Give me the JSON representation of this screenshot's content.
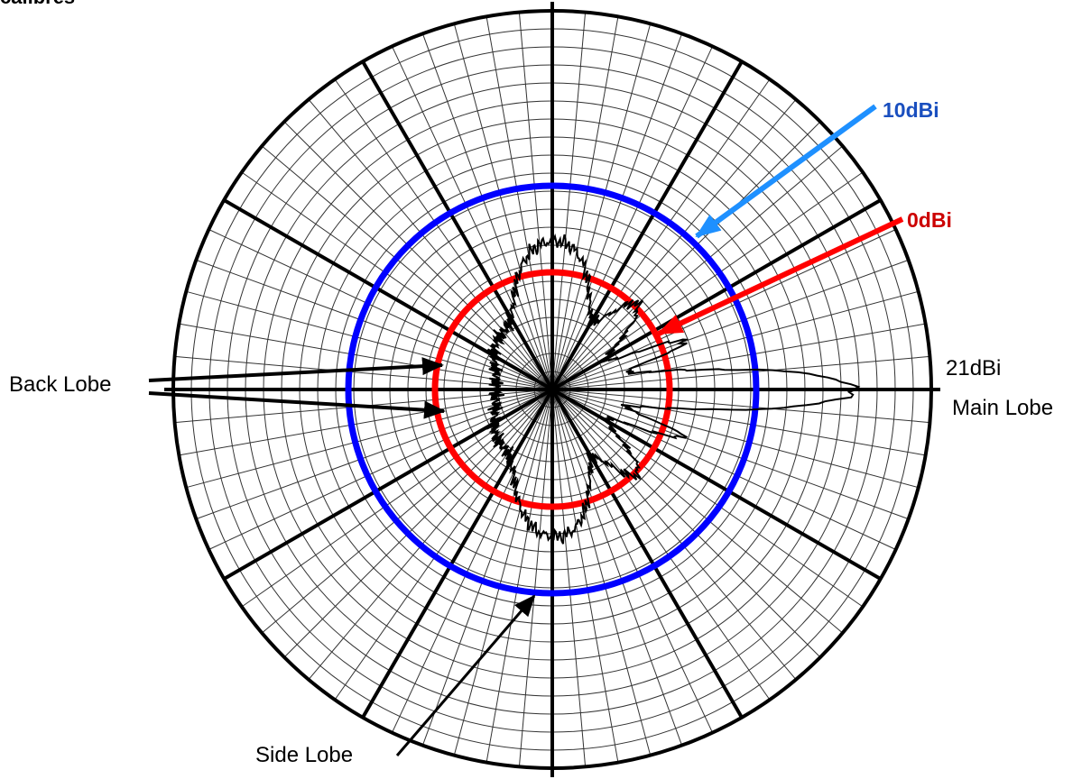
{
  "top_text": "calibres",
  "labels": {
    "ten_dbi": "10dBi",
    "zero_dbi": "0dBi",
    "twentyone_dbi": "21dBi",
    "main_lobe": "Main Lobe",
    "back_lobe": "Back Lobe",
    "side_lobe": "Side Lobe"
  },
  "colors": {
    "ten_dbi_ring": "#0000ff",
    "ten_dbi_label": "#1a4fbf",
    "ten_dbi_arrow": "#1e90ff",
    "zero_dbi_ring": "#ff0000",
    "zero_dbi_label": "#cc0000",
    "grid": "#333333",
    "pattern": "#000000"
  }
}
